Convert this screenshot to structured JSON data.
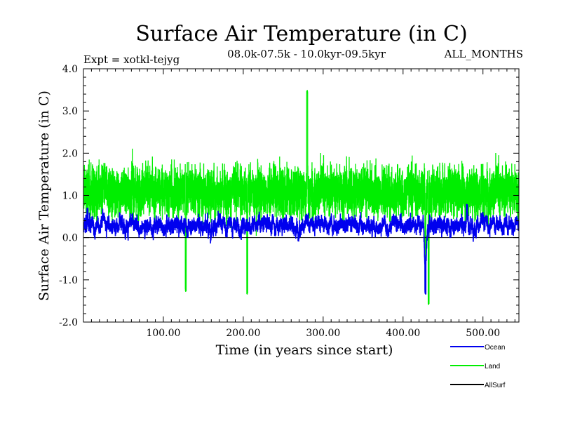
{
  "chart_data": {
    "type": "line",
    "title": "Surface Air Temperature (in C)",
    "subtitle_left": "Expt = xotkl-tejyg",
    "subtitle_center": "08.0k-07.5k - 10.0kyr-09.5kyr",
    "subtitle_right": "ALL_MONTHS",
    "xlabel": "Time (in years since start)",
    "ylabel": "Surface Air Temperature (in C)",
    "xlim": [
      0,
      545
    ],
    "ylim": [
      -2.0,
      4.0
    ],
    "xticks": [
      100,
      200,
      300,
      400,
      500
    ],
    "xtick_labels": [
      "100.00",
      "200.00",
      "300.00",
      "400.00",
      "500.00"
    ],
    "yticks": [
      -2.0,
      -1.0,
      0.0,
      1.0,
      2.0,
      3.0,
      4.0
    ],
    "ytick_labels": [
      "-2.0",
      "-1.0",
      "0.0",
      "1.0",
      "2.0",
      "3.0",
      "4.0"
    ],
    "reference_line_y": 0.0,
    "series": [
      {
        "name": "Land",
        "color": "#00ee00",
        "n_points": 6500,
        "mean": 1.1,
        "spread": 0.75,
        "features": [
          {
            "x": 128,
            "y": -1.25
          },
          {
            "x": 205,
            "y": -1.3
          },
          {
            "x": 280,
            "y": 3.45
          },
          {
            "x": 432,
            "y": -1.55
          },
          {
            "x": 428,
            "y": -1.2
          }
        ]
      },
      {
        "name": "Ocean",
        "color": "#0000ee",
        "n_points": 6500,
        "mean": 0.3,
        "spread": 0.18,
        "features": [
          {
            "x": 428,
            "y": -1.3
          },
          {
            "x": 5,
            "y": 0.7
          },
          {
            "x": 480,
            "y": 0.75
          }
        ]
      },
      {
        "name": "AllSurf",
        "color": "#000000",
        "n_points": 0
      }
    ],
    "legend": [
      {
        "label": "Ocean",
        "color": "#0000ee"
      },
      {
        "label": "Land",
        "color": "#00ee00"
      },
      {
        "label": "AllSurf",
        "color": "#000000"
      }
    ]
  }
}
